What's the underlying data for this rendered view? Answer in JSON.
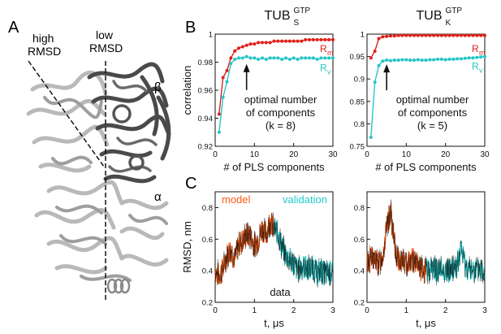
{
  "panels": {
    "a": {
      "letter": "A",
      "high_label_1": "high",
      "high_label_2": "RMSD",
      "low_label_1": "low",
      "low_label_2": "RMSD",
      "beta": "β",
      "alpha": "α"
    },
    "b": {
      "letter": "B"
    },
    "c": {
      "letter": "C"
    }
  },
  "chart_data": [
    {
      "id": "B-left",
      "type": "line",
      "title_base": "TUB",
      "title_sub": "S",
      "title_sup": "GTP",
      "xlabel": "# of PLS components",
      "ylabel": "correlation",
      "xlim": [
        0,
        30
      ],
      "ylim": [
        0.92,
        1.0
      ],
      "xticks": [
        "0",
        "10",
        "20",
        "30"
      ],
      "yticks": [
        "0.92",
        "0.94",
        "0.96",
        "0.98",
        "1"
      ],
      "series": [
        {
          "name": "R",
          "name_sub": "m",
          "color": "#e0201b",
          "x": [
            1,
            2,
            3,
            4,
            5,
            6,
            7,
            8,
            9,
            10,
            11,
            12,
            13,
            14,
            15,
            16,
            17,
            18,
            19,
            20,
            21,
            22,
            23,
            24,
            25,
            26,
            27,
            28,
            29,
            30
          ],
          "values": [
            0.943,
            0.969,
            0.974,
            0.983,
            0.988,
            0.99,
            0.991,
            0.992,
            0.993,
            0.993,
            0.994,
            0.994,
            0.994,
            0.994,
            0.995,
            0.995,
            0.995,
            0.995,
            0.995,
            0.995,
            0.995,
            0.995,
            0.996,
            0.996,
            0.996,
            0.996,
            0.996,
            0.996,
            0.996,
            0.996
          ]
        },
        {
          "name": "R",
          "name_sub": "v",
          "color": "#26c6c6",
          "x": [
            1,
            2,
            3,
            4,
            5,
            6,
            7,
            8,
            9,
            10,
            11,
            12,
            13,
            14,
            15,
            16,
            17,
            18,
            19,
            20,
            21,
            22,
            23,
            24,
            25,
            26,
            27,
            28,
            29,
            30
          ],
          "values": [
            0.93,
            0.955,
            0.966,
            0.979,
            0.982,
            0.983,
            0.983,
            0.984,
            0.983,
            0.983,
            0.982,
            0.983,
            0.982,
            0.983,
            0.983,
            0.983,
            0.982,
            0.983,
            0.982,
            0.983,
            0.982,
            0.983,
            0.983,
            0.983,
            0.983,
            0.982,
            0.983,
            0.983,
            0.983,
            0.983
          ]
        }
      ],
      "annotation": {
        "lines": [
          "optimal number",
          "of components",
          "(k = 8)"
        ],
        "arrow_x": 8,
        "arrow_y": 0.981
      }
    },
    {
      "id": "B-right",
      "type": "line",
      "title_base": "TUB",
      "title_sub": "K",
      "title_sup": "GTP",
      "xlabel": "# of PLS components",
      "ylabel": "",
      "xlim": [
        0,
        30
      ],
      "ylim": [
        0.75,
        1.0
      ],
      "xticks": [
        "0",
        "10",
        "20",
        "30"
      ],
      "yticks": [
        "0.75",
        "0.8",
        "0.85",
        "0.9",
        "0.95",
        "1"
      ],
      "series": [
        {
          "name": "R",
          "name_sub": "m",
          "color": "#e0201b",
          "x": [
            1,
            2,
            3,
            4,
            5,
            6,
            7,
            8,
            9,
            10,
            11,
            12,
            13,
            14,
            15,
            16,
            17,
            18,
            19,
            20,
            21,
            22,
            23,
            24,
            25,
            26,
            27,
            28,
            29,
            30
          ],
          "values": [
            0.947,
            0.962,
            0.99,
            0.994,
            0.995,
            0.996,
            0.996,
            0.997,
            0.997,
            0.997,
            0.997,
            0.997,
            0.997,
            0.997,
            0.997,
            0.997,
            0.997,
            0.997,
            0.997,
            0.997,
            0.997,
            0.997,
            0.997,
            0.997,
            0.997,
            0.997,
            0.997,
            0.997,
            0.997,
            0.997
          ]
        },
        {
          "name": "R",
          "name_sub": "v",
          "color": "#26c6c6",
          "x": [
            1,
            2,
            3,
            4,
            5,
            6,
            7,
            8,
            9,
            10,
            11,
            12,
            13,
            14,
            15,
            16,
            17,
            18,
            19,
            20,
            21,
            22,
            23,
            24,
            25,
            26,
            27,
            28,
            29,
            30
          ],
          "values": [
            0.77,
            0.893,
            0.93,
            0.94,
            0.942,
            0.941,
            0.942,
            0.942,
            0.943,
            0.943,
            0.942,
            0.942,
            0.943,
            0.942,
            0.942,
            0.943,
            0.943,
            0.944,
            0.944,
            0.943,
            0.944,
            0.944,
            0.945,
            0.945,
            0.946,
            0.947,
            0.947,
            0.948,
            0.949,
            0.95
          ]
        }
      ],
      "annotation": {
        "lines": [
          "optimal number",
          "of components",
          "(k = 5)"
        ],
        "arrow_x": 5,
        "arrow_y": 0.94
      }
    },
    {
      "id": "C-left",
      "type": "line",
      "xlabel": "t, μs",
      "ylabel": "RMSD, nm",
      "xlim": [
        0,
        3
      ],
      "ylim": [
        0.2,
        0.9
      ],
      "xticks": [
        "0",
        "1",
        "2",
        "3"
      ],
      "yticks": [
        "0.2",
        "0.4",
        "0.6",
        "0.8"
      ],
      "labels": {
        "model": "model",
        "validation": "validation",
        "data": "data"
      },
      "model_color": "#ff5a12",
      "validation_color": "#22cccc",
      "data_color": "#111111",
      "split_x": 1.5,
      "profile": {
        "x": [
          0,
          0.1,
          0.2,
          0.3,
          0.4,
          0.5,
          0.6,
          0.7,
          0.8,
          0.9,
          1.0,
          1.1,
          1.2,
          1.3,
          1.4,
          1.5,
          1.6,
          1.7,
          1.8,
          1.9,
          2.0,
          2.1,
          2.2,
          2.3,
          2.4,
          2.5,
          2.6,
          2.7,
          2.8,
          2.9,
          3.0
        ],
        "y": [
          0.4,
          0.37,
          0.41,
          0.5,
          0.54,
          0.47,
          0.57,
          0.59,
          0.63,
          0.62,
          0.56,
          0.6,
          0.67,
          0.63,
          0.72,
          0.66,
          0.64,
          0.55,
          0.5,
          0.47,
          0.45,
          0.4,
          0.43,
          0.42,
          0.41,
          0.42,
          0.38,
          0.4,
          0.38,
          0.39,
          0.38
        ]
      }
    },
    {
      "id": "C-right",
      "type": "line",
      "xlabel": "t, μs",
      "ylabel": "",
      "xlim": [
        0,
        3
      ],
      "ylim": [
        0.2,
        0.9
      ],
      "xticks": [
        "0",
        "1",
        "2",
        "3"
      ],
      "yticks": [
        "0.2",
        "0.4",
        "0.6",
        "0.8"
      ],
      "model_color": "#ff5a12",
      "validation_color": "#22cccc",
      "data_color": "#111111",
      "split_x": 1.5,
      "profile": {
        "x": [
          0,
          0.1,
          0.2,
          0.3,
          0.4,
          0.5,
          0.6,
          0.7,
          0.8,
          0.9,
          1.0,
          1.1,
          1.2,
          1.3,
          1.4,
          1.5,
          1.6,
          1.7,
          1.8,
          1.9,
          2.0,
          2.1,
          2.2,
          2.3,
          2.4,
          2.5,
          2.6,
          2.7,
          2.8,
          2.9,
          3.0
        ],
        "y": [
          0.45,
          0.48,
          0.47,
          0.44,
          0.5,
          0.66,
          0.78,
          0.55,
          0.46,
          0.47,
          0.44,
          0.48,
          0.46,
          0.43,
          0.4,
          0.4,
          0.41,
          0.42,
          0.4,
          0.41,
          0.4,
          0.4,
          0.42,
          0.43,
          0.54,
          0.44,
          0.4,
          0.41,
          0.4,
          0.41,
          0.4
        ]
      }
    }
  ]
}
